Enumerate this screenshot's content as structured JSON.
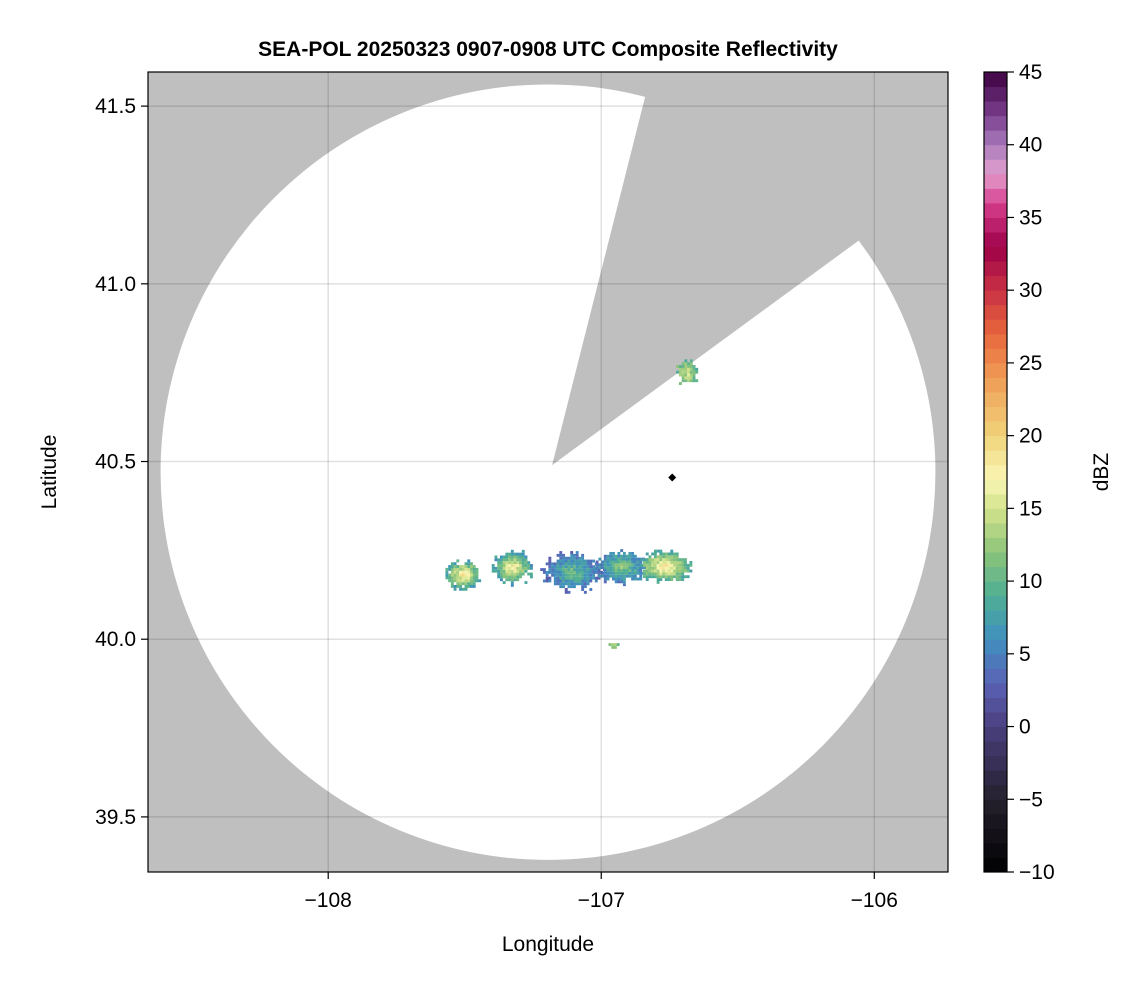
{
  "chart_data": {
    "type": "heatmap",
    "title": "SEA-POL 20250323 0907-0908 UTC Composite Reflectivity",
    "xlabel": "Longitude",
    "ylabel": "Latitude",
    "xlim": [
      -108.66,
      -105.73
    ],
    "ylim": [
      39.345,
      41.596
    ],
    "xticks": [
      -108,
      -107,
      -106
    ],
    "xtick_labels": [
      "−108",
      "−107",
      "−106"
    ],
    "yticks": [
      39.5,
      40.0,
      40.5,
      41.0,
      41.5
    ],
    "ytick_labels": [
      "39.5",
      "40.0",
      "40.5",
      "41.0",
      "41.5"
    ],
    "grid": true,
    "no_data_color": "#bfbfbf",
    "radar_range": {
      "center_lon": -107.195,
      "center_lat": 40.47,
      "radius_lon_deg": 1.419,
      "radius_lat_deg": 1.091
    },
    "blocked_sector": {
      "apex": [
        -107.18,
        40.49
      ],
      "edge1": [
        -106.839,
        41.527
      ],
      "edge2": [
        -106.06,
        41.12
      ]
    },
    "marker": {
      "lon": -106.74,
      "lat": 40.455,
      "shape": "diamond",
      "color": "#000000"
    },
    "echo_cells": [
      {
        "lon": -107.51,
        "lat": 40.178,
        "rlon": 0.062,
        "rlat": 0.038,
        "peak_dbz": 19,
        "edge_dbz": 8
      },
      {
        "lon": -107.33,
        "lat": 40.198,
        "rlon": 0.07,
        "rlat": 0.045,
        "peak_dbz": 18,
        "edge_dbz": 7
      },
      {
        "lon": -107.11,
        "lat": 40.185,
        "rlon": 0.095,
        "rlat": 0.05,
        "peak_dbz": 11,
        "edge_dbz": 4
      },
      {
        "lon": -106.93,
        "lat": 40.2,
        "rlon": 0.085,
        "rlat": 0.045,
        "peak_dbz": 12,
        "edge_dbz": 5
      },
      {
        "lon": -106.77,
        "lat": 40.2,
        "rlon": 0.09,
        "rlat": 0.04,
        "peak_dbz": 19,
        "edge_dbz": 9
      },
      {
        "lon": -106.96,
        "lat": 39.978,
        "rlon": 0.018,
        "rlat": 0.01,
        "peak_dbz": 14,
        "edge_dbz": 10
      },
      {
        "lon": -106.69,
        "lat": 40.745,
        "rlon": 0.035,
        "rlat": 0.035,
        "peak_dbz": 15,
        "edge_dbz": 10
      }
    ],
    "colorbar": {
      "label": "dBZ",
      "range": [
        -10,
        45
      ],
      "step": 1,
      "ticks": [
        -10,
        -5,
        0,
        5,
        10,
        15,
        20,
        25,
        30,
        35,
        40,
        45
      ],
      "tick_labels": [
        "−10",
        "−5",
        "0",
        "5",
        "10",
        "15",
        "20",
        "25",
        "30",
        "35",
        "40",
        "45"
      ],
      "color_stops": [
        [
          -10,
          "#000000"
        ],
        [
          -5,
          "#25202e"
        ],
        [
          0,
          "#4a3f7e"
        ],
        [
          3,
          "#5b62b6"
        ],
        [
          6,
          "#3f8fc0"
        ],
        [
          9,
          "#4fae93"
        ],
        [
          12,
          "#8cc47a"
        ],
        [
          15,
          "#d4e38c"
        ],
        [
          17,
          "#f9f6b5"
        ],
        [
          20,
          "#f0d37a"
        ],
        [
          24,
          "#ef9c55"
        ],
        [
          27,
          "#e8673c"
        ],
        [
          30,
          "#c93144"
        ],
        [
          33,
          "#9d0048"
        ],
        [
          36,
          "#d6408f"
        ],
        [
          38,
          "#e39fce"
        ],
        [
          40,
          "#a97cbd"
        ],
        [
          42,
          "#7c3f8e"
        ],
        [
          45,
          "#3c0041"
        ]
      ]
    }
  }
}
